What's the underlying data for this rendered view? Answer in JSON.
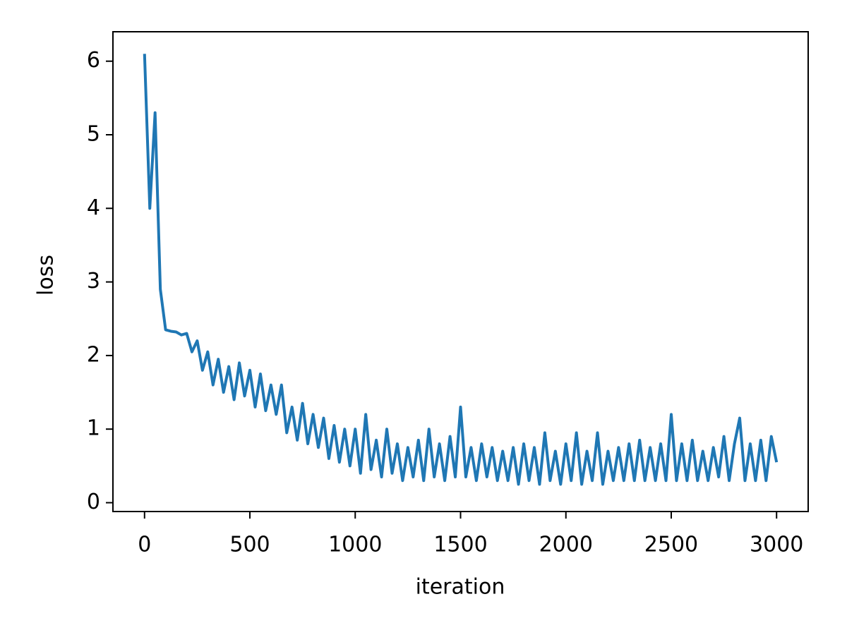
{
  "chart_data": {
    "type": "line",
    "x_label": "iteration",
    "y_label": "loss",
    "x": [
      0,
      25,
      50,
      75,
      100,
      125,
      150,
      175,
      200,
      225,
      250,
      275,
      300,
      325,
      350,
      375,
      400,
      425,
      450,
      475,
      500,
      525,
      550,
      575,
      600,
      625,
      650,
      675,
      700,
      725,
      750,
      775,
      800,
      825,
      850,
      875,
      900,
      925,
      950,
      975,
      1000,
      1025,
      1050,
      1075,
      1100,
      1125,
      1150,
      1175,
      1200,
      1225,
      1250,
      1275,
      1300,
      1325,
      1350,
      1375,
      1400,
      1425,
      1450,
      1475,
      1500,
      1525,
      1550,
      1575,
      1600,
      1625,
      1650,
      1675,
      1700,
      1725,
      1750,
      1775,
      1800,
      1825,
      1850,
      1875,
      1900,
      1925,
      1950,
      1975,
      2000,
      2025,
      2050,
      2075,
      2100,
      2125,
      2150,
      2175,
      2200,
      2225,
      2250,
      2275,
      2300,
      2325,
      2350,
      2375,
      2400,
      2425,
      2450,
      2475,
      2500,
      2525,
      2550,
      2575,
      2600,
      2625,
      2650,
      2675,
      2700,
      2725,
      2750,
      2775,
      2800,
      2825,
      2850,
      2875,
      2900,
      2925,
      2950,
      2975,
      3000
    ],
    "series": [
      {
        "color": "#1f77b4",
        "values": [
          6.1,
          4.0,
          5.3,
          2.9,
          2.35,
          2.33,
          2.32,
          2.28,
          2.3,
          2.05,
          2.2,
          1.8,
          2.05,
          1.6,
          1.95,
          1.5,
          1.85,
          1.4,
          1.9,
          1.45,
          1.8,
          1.3,
          1.75,
          1.25,
          1.6,
          1.2,
          1.6,
          0.95,
          1.3,
          0.85,
          1.35,
          0.8,
          1.2,
          0.75,
          1.15,
          0.6,
          1.05,
          0.55,
          1.0,
          0.5,
          1.0,
          0.4,
          1.2,
          0.45,
          0.85,
          0.35,
          1.0,
          0.4,
          0.8,
          0.3,
          0.75,
          0.35,
          0.85,
          0.3,
          1.0,
          0.35,
          0.8,
          0.3,
          0.9,
          0.35,
          1.3,
          0.35,
          0.75,
          0.3,
          0.8,
          0.35,
          0.75,
          0.3,
          0.7,
          0.3,
          0.75,
          0.25,
          0.8,
          0.3,
          0.75,
          0.25,
          0.95,
          0.3,
          0.7,
          0.25,
          0.8,
          0.3,
          0.95,
          0.25,
          0.7,
          0.3,
          0.95,
          0.25,
          0.7,
          0.3,
          0.75,
          0.3,
          0.8,
          0.3,
          0.85,
          0.3,
          0.75,
          0.3,
          0.8,
          0.3,
          1.2,
          0.3,
          0.8,
          0.3,
          0.85,
          0.3,
          0.7,
          0.3,
          0.75,
          0.35,
          0.9,
          0.3,
          0.8,
          1.15,
          0.3,
          0.8,
          0.3,
          0.85,
          0.3,
          0.9,
          0.55
        ]
      }
    ],
    "xlim": [
      -150,
      3150
    ],
    "ylim": [
      -0.12,
      6.4
    ],
    "xticks": [
      0,
      500,
      1000,
      1500,
      2000,
      2500,
      3000
    ],
    "yticks": [
      0,
      1,
      2,
      3,
      4,
      5,
      6
    ]
  }
}
